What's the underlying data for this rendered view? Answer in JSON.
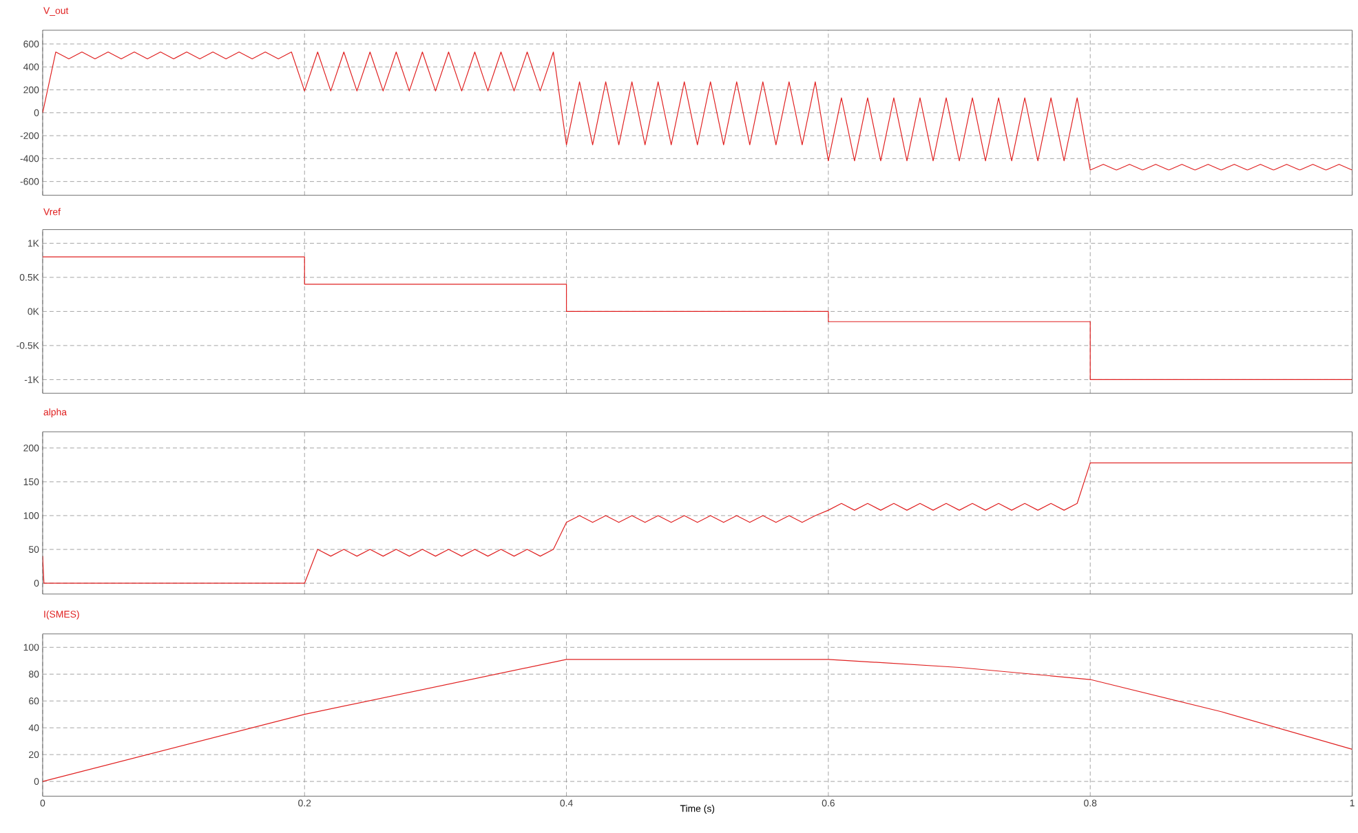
{
  "chart_data": [
    {
      "type": "line",
      "title": "V_out",
      "color": "#e02020",
      "grid": true,
      "tick_labels": "y",
      "xlim": [
        0,
        1
      ],
      "xticks": [
        0,
        0.2,
        0.4,
        0.6,
        0.8,
        1
      ],
      "ylim": [
        -720,
        720
      ],
      "yticks": [
        -600,
        -400,
        -200,
        0,
        200,
        400,
        600
      ],
      "x": [
        0,
        0.01,
        0.02,
        0.03,
        0.04,
        0.05,
        0.06,
        0.07,
        0.08,
        0.09,
        0.1,
        0.11,
        0.12,
        0.13,
        0.14,
        0.15,
        0.16,
        0.17,
        0.18,
        0.19,
        0.2,
        0.21,
        0.22,
        0.23,
        0.24,
        0.25,
        0.26,
        0.27,
        0.28,
        0.29,
        0.3,
        0.31,
        0.32,
        0.33,
        0.34,
        0.35,
        0.36,
        0.37,
        0.38,
        0.39,
        0.4,
        0.41,
        0.42,
        0.43,
        0.44,
        0.45,
        0.46,
        0.47,
        0.48,
        0.49,
        0.5,
        0.51,
        0.52,
        0.53,
        0.54,
        0.55,
        0.56,
        0.57,
        0.58,
        0.59,
        0.6,
        0.61,
        0.62,
        0.63,
        0.64,
        0.65,
        0.66,
        0.67,
        0.68,
        0.69,
        0.7,
        0.71,
        0.72,
        0.73,
        0.74,
        0.75,
        0.76,
        0.77,
        0.78,
        0.79,
        0.8,
        0.81,
        0.82,
        0.83,
        0.84,
        0.85,
        0.86,
        0.87,
        0.88,
        0.89,
        0.9,
        0.91,
        0.92,
        0.93,
        0.94,
        0.95,
        0.96,
        0.97,
        0.98,
        0.99,
        1
      ],
      "values": [
        0,
        530,
        470,
        530,
        470,
        530,
        470,
        530,
        470,
        530,
        470,
        530,
        470,
        530,
        470,
        530,
        470,
        530,
        470,
        530,
        190,
        530,
        190,
        530,
        190,
        530,
        190,
        530,
        190,
        530,
        190,
        530,
        190,
        530,
        190,
        530,
        190,
        530,
        190,
        530,
        -280,
        270,
        -280,
        270,
        -280,
        270,
        -280,
        270,
        -280,
        270,
        -280,
        270,
        -280,
        270,
        -280,
        270,
        -280,
        270,
        -280,
        270,
        -420,
        130,
        -420,
        130,
        -420,
        130,
        -420,
        130,
        -420,
        130,
        -420,
        130,
        -420,
        130,
        -420,
        130,
        -420,
        130,
        -420,
        130,
        -500,
        -450,
        -500,
        -450,
        -500,
        -450,
        -500,
        -450,
        -500,
        -450,
        -500,
        -450,
        -500,
        -450,
        -500,
        -450,
        -500,
        -450,
        -500,
        -450,
        -500
      ]
    },
    {
      "type": "step",
      "title": "Vref",
      "color": "#e02020",
      "grid": true,
      "tick_labels": "y",
      "xlim": [
        0,
        1
      ],
      "xticks": [
        0,
        0.2,
        0.4,
        0.6,
        0.8,
        1
      ],
      "ylim": [
        -1200,
        1200
      ],
      "yticks": [
        {
          "value": -1000,
          "label": "-1K"
        },
        {
          "value": -500,
          "label": "-0.5K"
        },
        {
          "value": 0,
          "label": "0K"
        },
        {
          "value": 500,
          "label": "0.5K"
        },
        {
          "value": 1000,
          "label": "1K"
        }
      ],
      "x": [
        0,
        0.2,
        0.4,
        0.6,
        0.8,
        1
      ],
      "values": [
        800,
        400,
        0,
        -150,
        -1000,
        -1000
      ]
    },
    {
      "type": "line",
      "title": "alpha",
      "color": "#e02020",
      "grid": true,
      "tick_labels": "y",
      "xlim": [
        0,
        1
      ],
      "xticks": [
        0,
        0.2,
        0.4,
        0.6,
        0.8,
        1
      ],
      "ylim": [
        -16,
        224
      ],
      "yticks": [
        0,
        50,
        100,
        150,
        200
      ],
      "x": [
        0,
        0.001,
        0.2,
        0.21,
        0.22,
        0.23,
        0.24,
        0.25,
        0.26,
        0.27,
        0.28,
        0.29,
        0.3,
        0.31,
        0.32,
        0.33,
        0.34,
        0.35,
        0.36,
        0.37,
        0.38,
        0.39,
        0.4,
        0.41,
        0.42,
        0.43,
        0.44,
        0.45,
        0.46,
        0.47,
        0.48,
        0.49,
        0.5,
        0.51,
        0.52,
        0.53,
        0.54,
        0.55,
        0.56,
        0.57,
        0.58,
        0.59,
        0.6,
        0.61,
        0.62,
        0.63,
        0.64,
        0.65,
        0.66,
        0.67,
        0.68,
        0.69,
        0.7,
        0.71,
        0.72,
        0.73,
        0.74,
        0.75,
        0.76,
        0.77,
        0.78,
        0.79,
        0.8,
        1
      ],
      "values": [
        40,
        0,
        0,
        50,
        40,
        50,
        40,
        50,
        40,
        50,
        40,
        50,
        40,
        50,
        40,
        50,
        40,
        50,
        40,
        50,
        40,
        50,
        90,
        100,
        90,
        100,
        90,
        100,
        90,
        100,
        90,
        100,
        90,
        100,
        90,
        100,
        90,
        100,
        90,
        100,
        90,
        100,
        108,
        118,
        108,
        118,
        108,
        118,
        108,
        118,
        108,
        118,
        108,
        118,
        108,
        118,
        108,
        118,
        108,
        118,
        108,
        118,
        178,
        178
      ]
    },
    {
      "type": "line",
      "title": "I(SMES)",
      "xlabel": "Time (s)",
      "color": "#e02020",
      "grid": true,
      "xlim": [
        0,
        1
      ],
      "xticks": [
        0,
        0.2,
        0.4,
        0.6,
        0.8,
        1
      ],
      "ylim": [
        -11,
        110
      ],
      "yticks": [
        0,
        20,
        40,
        60,
        80,
        100
      ],
      "x": [
        0,
        0.2,
        0.4,
        0.6,
        0.7,
        0.8,
        0.9,
        1
      ],
      "values": [
        0,
        50,
        91,
        91,
        85,
        76,
        52,
        24
      ]
    }
  ]
}
